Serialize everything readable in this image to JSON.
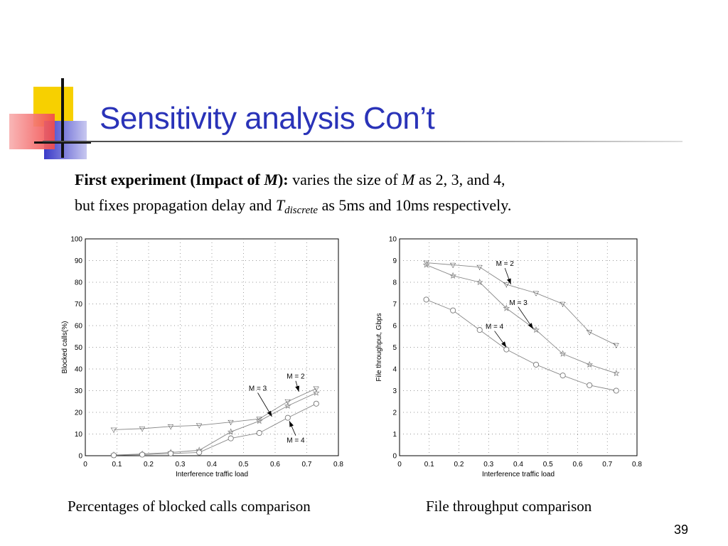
{
  "slide": {
    "title": "Sensitivity analysis Con’t",
    "line1": {
      "bold1": "First experiment",
      "bold2": " (Impact of ",
      "m": "M",
      "bold3": "):",
      "rest1": " varies the size of ",
      "m2": "M",
      "rest2": " as 2, 3, and 4,"
    },
    "line2": {
      "text1": "but fixes propagation delay and ",
      "t": "T",
      "sub": "discrete",
      "text2": " as 5ms and 10ms respectively."
    },
    "caption_left": "Percentages of blocked calls comparison",
    "caption_right": "File throughput comparison",
    "page_number": "39",
    "colors": {
      "title": "#2a33b8",
      "accent_yellow": "#f7d000",
      "accent_red": "#f24a4a",
      "accent_blue": "#3a3ac8"
    }
  },
  "chart_data": [
    {
      "type": "line",
      "xlabel": "Interference traffic load",
      "ylabel": "Blocked calls(%)",
      "xlim": [
        0,
        0.8
      ],
      "ylim": [
        0,
        100
      ],
      "xticks": [
        "0",
        "0.1",
        "0.2",
        "0.3",
        "0.4",
        "0.5",
        "0.6",
        "0.7",
        "0.8"
      ],
      "yticks": [
        "0",
        "10",
        "20",
        "30",
        "40",
        "50",
        "60",
        "70",
        "80",
        "90",
        "100"
      ],
      "grid": true,
      "series": [
        {
          "name": "M = 2",
          "marker": "triangle",
          "x": [
            0.09,
            0.18,
            0.27,
            0.36,
            0.46,
            0.55,
            0.64,
            0.73
          ],
          "y": [
            12,
            12.5,
            13.5,
            14,
            15.5,
            17,
            25,
            31
          ]
        },
        {
          "name": "M = 3",
          "marker": "star",
          "x": [
            0.09,
            0.18,
            0.27,
            0.36,
            0.46,
            0.55,
            0.64,
            0.73
          ],
          "y": [
            0.3,
            0.8,
            1.5,
            2.5,
            11,
            16,
            23,
            29
          ]
        },
        {
          "name": "M = 4",
          "marker": "circle",
          "x": [
            0.09,
            0.18,
            0.27,
            0.36,
            0.46,
            0.55,
            0.64,
            0.73
          ],
          "y": [
            0.2,
            0.5,
            1,
            1.5,
            8,
            10.5,
            17.5,
            24
          ]
        }
      ],
      "annotations": [
        {
          "text": "M = 2",
          "x": 0.665,
          "y": 35.5,
          "to_x": 0.675,
          "to_y": 29.5
        },
        {
          "text": "M = 3",
          "x": 0.545,
          "y": 30,
          "to_x": 0.59,
          "to_y": 18
        },
        {
          "text": "M = 4",
          "x": 0.665,
          "y": 6,
          "to_x": 0.645,
          "to_y": 16
        }
      ]
    },
    {
      "type": "line",
      "xlabel": "Interference traffic load",
      "ylabel": "File throughput, Gbps",
      "xlim": [
        0,
        0.8
      ],
      "ylim": [
        0,
        10
      ],
      "xticks": [
        "0",
        "0.1",
        "0.2",
        "0.3",
        "0.4",
        "0.5",
        "0.6",
        "0.7",
        "0.8"
      ],
      "yticks": [
        "0",
        "1",
        "2",
        "3",
        "4",
        "5",
        "6",
        "7",
        "8",
        "9",
        "10"
      ],
      "grid": true,
      "series": [
        {
          "name": "M = 2",
          "marker": "triangle",
          "x": [
            0.09,
            0.18,
            0.27,
            0.36,
            0.46,
            0.55,
            0.64,
            0.73
          ],
          "y": [
            8.9,
            8.8,
            8.7,
            7.9,
            7.5,
            7,
            5.7,
            5.1
          ]
        },
        {
          "name": "M = 3",
          "marker": "star",
          "x": [
            0.09,
            0.18,
            0.27,
            0.36,
            0.46,
            0.55,
            0.64,
            0.73
          ],
          "y": [
            8.8,
            8.3,
            8,
            6.8,
            5.8,
            4.7,
            4.2,
            3.8
          ]
        },
        {
          "name": "M = 4",
          "marker": "circle",
          "x": [
            0.09,
            0.18,
            0.27,
            0.36,
            0.46,
            0.55,
            0.64,
            0.73
          ],
          "y": [
            7.2,
            6.7,
            5.8,
            4.9,
            4.2,
            3.7,
            3.25,
            3
          ]
        }
      ],
      "annotations": [
        {
          "text": "M = 2",
          "x": 0.355,
          "y": 8.75,
          "to_x": 0.375,
          "to_y": 7.9
        },
        {
          "text": "M = 3",
          "x": 0.4,
          "y": 6.95,
          "to_x": 0.45,
          "to_y": 5.85
        },
        {
          "text": "M = 4",
          "x": 0.32,
          "y": 5.85,
          "to_x": 0.36,
          "to_y": 5.0
        }
      ]
    }
  ]
}
